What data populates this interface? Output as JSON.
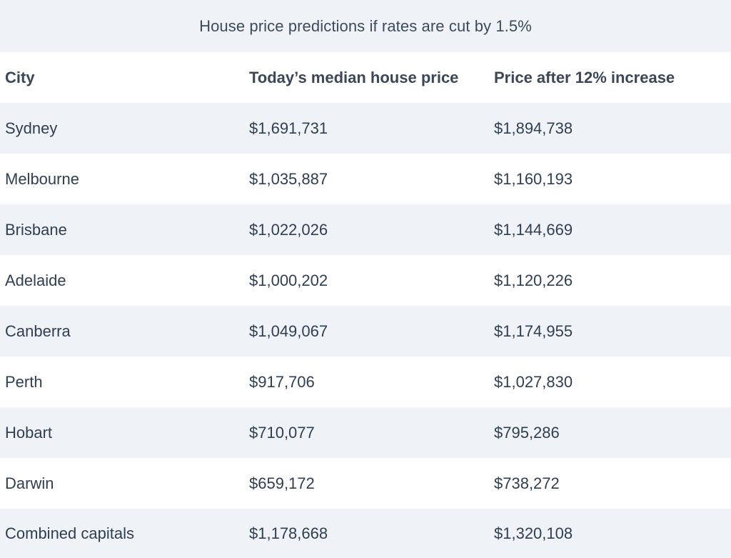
{
  "caption": "House price predictions if rates are cut by 1.5%",
  "headers": {
    "city": "City",
    "today": "Today’s median house price",
    "after": "Price after 12% increase"
  },
  "rows": [
    {
      "city": "Sydney",
      "today": "$1,691,731",
      "after": "$1,894,738"
    },
    {
      "city": "Melbourne",
      "today": "$1,035,887",
      "after": "$1,160,193"
    },
    {
      "city": "Brisbane",
      "today": "$1,022,026",
      "after": "$1,144,669"
    },
    {
      "city": "Adelaide",
      "today": "$1,000,202",
      "after": "$1,120,226"
    },
    {
      "city": "Canberra",
      "today": "$1,049,067",
      "after": "$1,174,955"
    },
    {
      "city": "Perth",
      "today": "$917,706",
      "after": "$1,027,830"
    },
    {
      "city": "Hobart",
      "today": "$710,077",
      "after": "$795,286"
    },
    {
      "city": "Darwin",
      "today": "$659,172",
      "after": "$738,272"
    },
    {
      "city": "Combined capitals",
      "today": "$1,178,668",
      "after": "$1,320,108"
    }
  ]
}
